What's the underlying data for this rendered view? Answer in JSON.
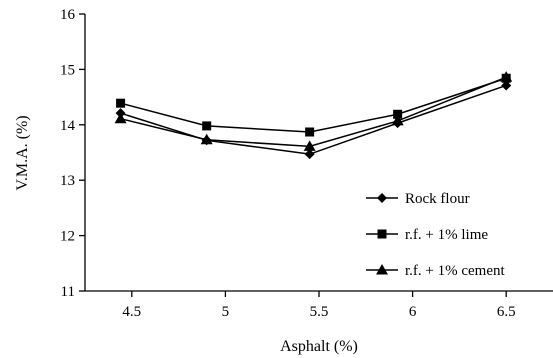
{
  "chart_data": {
    "type": "line",
    "title": "",
    "xlabel": "Asphalt (%)",
    "ylabel": "V.M.A. (%)",
    "xlim": [
      4.25,
      6.75
    ],
    "ylim": [
      11,
      16
    ],
    "xticks": [
      4.5,
      5,
      5.5,
      6,
      6.5
    ],
    "xtick_labels": [
      "4.5",
      "5",
      "5.5",
      "6",
      "6.5"
    ],
    "yticks": [
      11,
      12,
      13,
      14,
      15,
      16
    ],
    "ytick_labels": [
      "11",
      "12",
      "13",
      "14",
      "15",
      "16"
    ],
    "grid": false,
    "legend_position": "bottom-right",
    "series": [
      {
        "name": "Rock flour",
        "marker": "diamond",
        "color": "#000000",
        "x": [
          4.44,
          4.9,
          5.45,
          5.92,
          6.5
        ],
        "y": [
          14.21,
          13.72,
          13.47,
          14.03,
          14.71
        ]
      },
      {
        "name": "r.f. + 1% lime",
        "marker": "square",
        "color": "#000000",
        "x": [
          4.44,
          4.9,
          5.45,
          5.92,
          6.5
        ],
        "y": [
          14.39,
          13.98,
          13.87,
          14.19,
          14.84
        ]
      },
      {
        "name": "r.f. + 1% cement",
        "marker": "triangle",
        "color": "#000000",
        "x": [
          4.44,
          4.9,
          5.45,
          5.92,
          6.5
        ],
        "y": [
          14.11,
          13.73,
          13.61,
          14.07,
          14.86
        ]
      }
    ]
  }
}
